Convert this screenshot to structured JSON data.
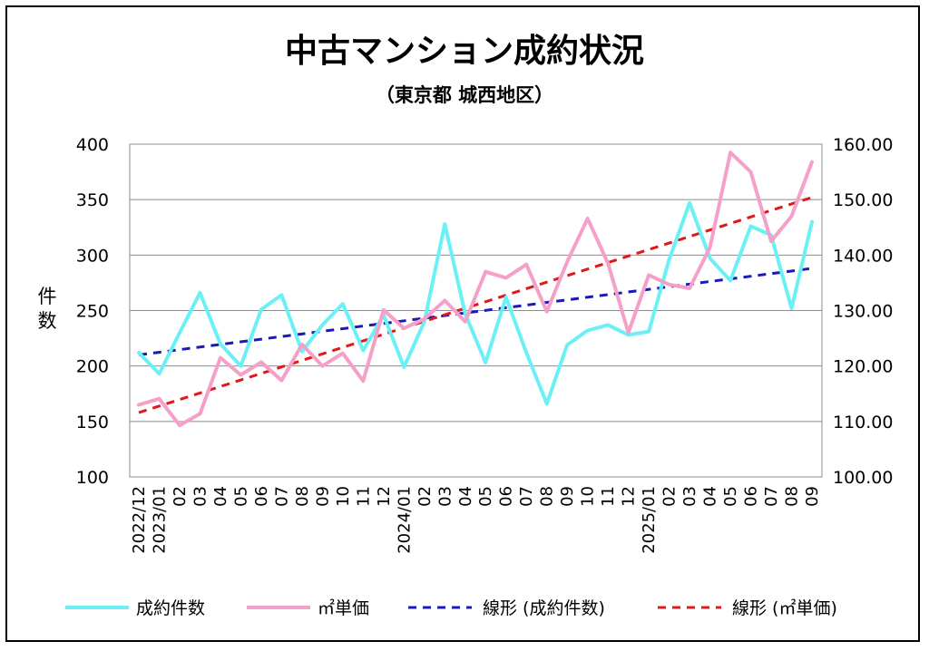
{
  "chart_data": {
    "type": "line",
    "title": "中古マンション成約状況",
    "subtitle": "（東京都 城西地区）",
    "ylabel": "件\n数",
    "ylabel_chars": [
      "件",
      "数"
    ],
    "xlabel": "",
    "categories": [
      "2022/12",
      "2023/01",
      "02",
      "03",
      "04",
      "05",
      "06",
      "07",
      "08",
      "09",
      "10",
      "11",
      "12",
      "2024/01",
      "02",
      "03",
      "04",
      "05",
      "06",
      "07",
      "08",
      "09",
      "10",
      "11",
      "12",
      "2025/01",
      "02",
      "03",
      "04",
      "05",
      "06",
      "07",
      "08",
      "09"
    ],
    "y_left": {
      "min": 100,
      "max": 400,
      "step": 50,
      "ticks": [
        "100",
        "150",
        "200",
        "250",
        "300",
        "350",
        "400"
      ]
    },
    "y_right": {
      "min": 100,
      "max": 160,
      "step": 10,
      "ticks": [
        "100.00",
        "110.00",
        "120.00",
        "130.00",
        "140.00",
        "150.00",
        "160.00"
      ]
    },
    "series": [
      {
        "name": "成約件数",
        "axis": "left",
        "color": "#6af0f5",
        "style": "solid",
        "values": [
          212,
          193,
          230,
          266,
          220,
          200,
          251,
          264,
          213,
          237,
          256,
          214,
          246,
          199,
          240,
          328,
          247,
          203,
          262,
          212,
          166,
          219,
          232,
          237,
          228,
          231,
          296,
          347,
          297,
          277,
          326,
          318,
          252,
          330
        ]
      },
      {
        "name": "㎡単価",
        "axis": "right",
        "color": "#f5a0c8",
        "style": "solid",
        "values": [
          113.0,
          114.1,
          109.3,
          111.4,
          121.5,
          118.4,
          120.7,
          117.4,
          123.9,
          120.0,
          122.3,
          117.3,
          130.1,
          126.8,
          128.5,
          131.8,
          128.0,
          137.0,
          135.9,
          138.3,
          129.8,
          138.8,
          146.6,
          138.5,
          126.0,
          136.4,
          134.7,
          134.0,
          141.4,
          158.5,
          155.0,
          142.5,
          147.0,
          156.8
        ]
      },
      {
        "name": "線形 (成約件数)",
        "axis": "left",
        "color": "#1a1ab8",
        "style": "dashed",
        "trend": [
          210,
          288
        ]
      },
      {
        "name": "線形 (㎡単価)",
        "axis": "right",
        "color": "#e01818",
        "style": "dashed",
        "trend": [
          111.6,
          150.4
        ]
      }
    ],
    "legend": [
      "成約件数",
      "㎡単価",
      "線形 (成約件数)",
      "線形 (㎡単価)"
    ],
    "legend_position": "bottom",
    "grid": {
      "horizontal": true,
      "vertical": false
    }
  }
}
